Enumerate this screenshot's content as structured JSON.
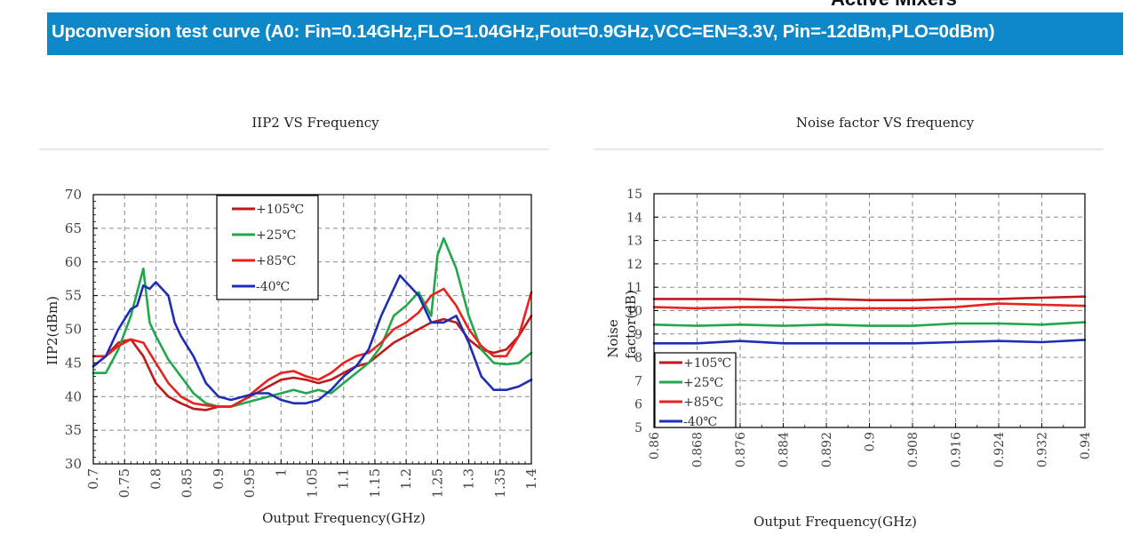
{
  "header": {
    "top_text": "Active Mixers",
    "banner_title": "Upconversion test  curve (A0: Fin=0.14GHz,FLO=1.04GHz,Fout=0.9GHz,VCC=EN=3.3V, Pin=-12dBm,PLO=0dBm)"
  },
  "chart_data": [
    {
      "type": "line",
      "title": "IIP2 VS Frequency",
      "xlabel": "Output Frequency(GHz)",
      "ylabel": "IIP2(dBm)",
      "xlim": [
        0.7,
        1.4
      ],
      "ylim": [
        30,
        70
      ],
      "xticks": [
        "0.7",
        "0.75",
        "0.8",
        "0.85",
        "0.9",
        "0.95",
        "1",
        "1.05",
        "1.1",
        "1.15",
        "1.2",
        "1.25",
        "1.3",
        "1.35",
        "1.4"
      ],
      "yticks": [
        "30",
        "35",
        "40",
        "45",
        "50",
        "55",
        "60",
        "65",
        "70"
      ],
      "grid": true,
      "legend_position": "top-center",
      "series": [
        {
          "name": "+105℃",
          "color": "#c0191c",
          "x": [
            0.7,
            0.72,
            0.74,
            0.76,
            0.78,
            0.8,
            0.82,
            0.84,
            0.86,
            0.88,
            0.9,
            0.92,
            0.94,
            0.96,
            0.98,
            1.0,
            1.02,
            1.04,
            1.06,
            1.08,
            1.1,
            1.12,
            1.14,
            1.16,
            1.18,
            1.2,
            1.22,
            1.24,
            1.26,
            1.28,
            1.3,
            1.32,
            1.34,
            1.36,
            1.38,
            1.4
          ],
          "y": [
            44.5,
            46,
            48,
            48.5,
            46,
            42,
            40,
            39,
            38.2,
            38,
            38.5,
            38.5,
            39.5,
            40.5,
            41.5,
            42.5,
            42.8,
            42.5,
            42,
            42.5,
            43.5,
            44.5,
            45,
            46.5,
            48,
            49,
            50,
            51,
            51.5,
            51,
            48.5,
            47,
            46.5,
            47,
            49,
            52
          ]
        },
        {
          "name": "+25℃",
          "color": "#20a84a",
          "x": [
            0.7,
            0.72,
            0.74,
            0.76,
            0.78,
            0.79,
            0.8,
            0.82,
            0.84,
            0.86,
            0.88,
            0.9,
            0.92,
            0.94,
            0.96,
            0.98,
            1.0,
            1.02,
            1.04,
            1.06,
            1.08,
            1.1,
            1.12,
            1.14,
            1.16,
            1.18,
            1.2,
            1.22,
            1.24,
            1.25,
            1.26,
            1.28,
            1.3,
            1.32,
            1.34,
            1.36,
            1.38,
            1.4
          ],
          "y": [
            43.5,
            43.5,
            47,
            52,
            59,
            51,
            49,
            45.5,
            43,
            40.5,
            39,
            38.5,
            38.5,
            39,
            39.5,
            40,
            40.5,
            41,
            40.5,
            41,
            40.5,
            42,
            43.5,
            45,
            47.5,
            52,
            53.5,
            55.5,
            52,
            61,
            63.5,
            59,
            52,
            47,
            45,
            44.8,
            45,
            46.5
          ]
        },
        {
          "name": "+85℃",
          "color": "#e8231f",
          "x": [
            0.7,
            0.72,
            0.74,
            0.76,
            0.78,
            0.8,
            0.82,
            0.84,
            0.86,
            0.88,
            0.9,
            0.92,
            0.94,
            0.96,
            0.98,
            1.0,
            1.02,
            1.04,
            1.06,
            1.08,
            1.1,
            1.12,
            1.14,
            1.16,
            1.18,
            1.2,
            1.22,
            1.24,
            1.26,
            1.28,
            1.3,
            1.32,
            1.34,
            1.36,
            1.38,
            1.4
          ],
          "y": [
            46,
            46,
            47.5,
            48.5,
            48,
            45,
            42,
            40,
            39,
            38.7,
            38.5,
            38.5,
            39.5,
            41,
            42.5,
            43.5,
            43.8,
            43,
            42.5,
            43.5,
            45,
            46,
            46.5,
            48,
            50,
            51,
            52.5,
            55,
            56,
            53.5,
            50,
            47.5,
            46,
            46,
            49,
            55.5
          ]
        },
        {
          "name": "-40℃",
          "color": "#1f2db5",
          "x": [
            0.7,
            0.72,
            0.74,
            0.76,
            0.77,
            0.78,
            0.79,
            0.8,
            0.82,
            0.83,
            0.84,
            0.86,
            0.88,
            0.9,
            0.92,
            0.94,
            0.96,
            0.98,
            1.0,
            1.02,
            1.04,
            1.06,
            1.08,
            1.1,
            1.12,
            1.14,
            1.16,
            1.18,
            1.19,
            1.2,
            1.22,
            1.24,
            1.26,
            1.28,
            1.3,
            1.32,
            1.34,
            1.36,
            1.38,
            1.4
          ],
          "y": [
            44.5,
            46,
            50,
            53,
            53.5,
            56.5,
            56,
            57,
            55,
            51,
            49,
            46,
            42,
            40,
            39.5,
            40,
            40.5,
            40.5,
            39.5,
            39,
            39,
            39.5,
            41,
            43,
            44.5,
            47,
            52,
            56,
            58,
            57,
            55,
            51,
            51,
            52,
            48,
            43,
            41,
            41,
            41.5,
            42.5
          ]
        }
      ]
    },
    {
      "type": "line",
      "title": "Noise factor VS frequency",
      "xlabel": "Output Frequency(GHz)",
      "ylabel": "Noise factor(dB)",
      "ylabel_line1": "Noise",
      "ylabel_line2": "factor(dB)",
      "xlim": [
        0.86,
        0.94
      ],
      "ylim": [
        5,
        15
      ],
      "xticks": [
        "0.86",
        "0.868",
        "0.876",
        "0.884",
        "0.892",
        "0.9",
        "0.908",
        "0.916",
        "0.924",
        "0.932",
        "0.94"
      ],
      "yticks": [
        "5",
        "6",
        "7",
        "8",
        "9",
        "10",
        "11",
        "12",
        "13",
        "14",
        "15"
      ],
      "grid": true,
      "legend_position": "bottom-left",
      "series": [
        {
          "name": "+105℃",
          "color": "#c0191c",
          "x": [
            0.86,
            0.868,
            0.876,
            0.884,
            0.892,
            0.9,
            0.908,
            0.916,
            0.924,
            0.932,
            0.94
          ],
          "y": [
            10.5,
            10.5,
            10.5,
            10.45,
            10.5,
            10.45,
            10.45,
            10.5,
            10.5,
            10.55,
            10.6
          ]
        },
        {
          "name": "+25℃",
          "color": "#20a84a",
          "x": [
            0.86,
            0.868,
            0.876,
            0.884,
            0.892,
            0.9,
            0.908,
            0.916,
            0.924,
            0.932,
            0.94
          ],
          "y": [
            9.4,
            9.35,
            9.4,
            9.35,
            9.4,
            9.35,
            9.35,
            9.45,
            9.45,
            9.4,
            9.5
          ]
        },
        {
          "name": "+85℃",
          "color": "#e8231f",
          "x": [
            0.86,
            0.868,
            0.876,
            0.884,
            0.892,
            0.9,
            0.908,
            0.916,
            0.924,
            0.932,
            0.94
          ],
          "y": [
            10.15,
            10.1,
            10.15,
            10.15,
            10.1,
            10.1,
            10.1,
            10.15,
            10.3,
            10.25,
            10.2
          ]
        },
        {
          "name": "-40℃",
          "color": "#1f2db5",
          "x": [
            0.86,
            0.868,
            0.876,
            0.884,
            0.892,
            0.9,
            0.908,
            0.916,
            0.924,
            0.932,
            0.94
          ],
          "y": [
            8.6,
            8.6,
            8.7,
            8.6,
            8.6,
            8.6,
            8.6,
            8.65,
            8.7,
            8.65,
            8.75
          ]
        }
      ]
    }
  ]
}
